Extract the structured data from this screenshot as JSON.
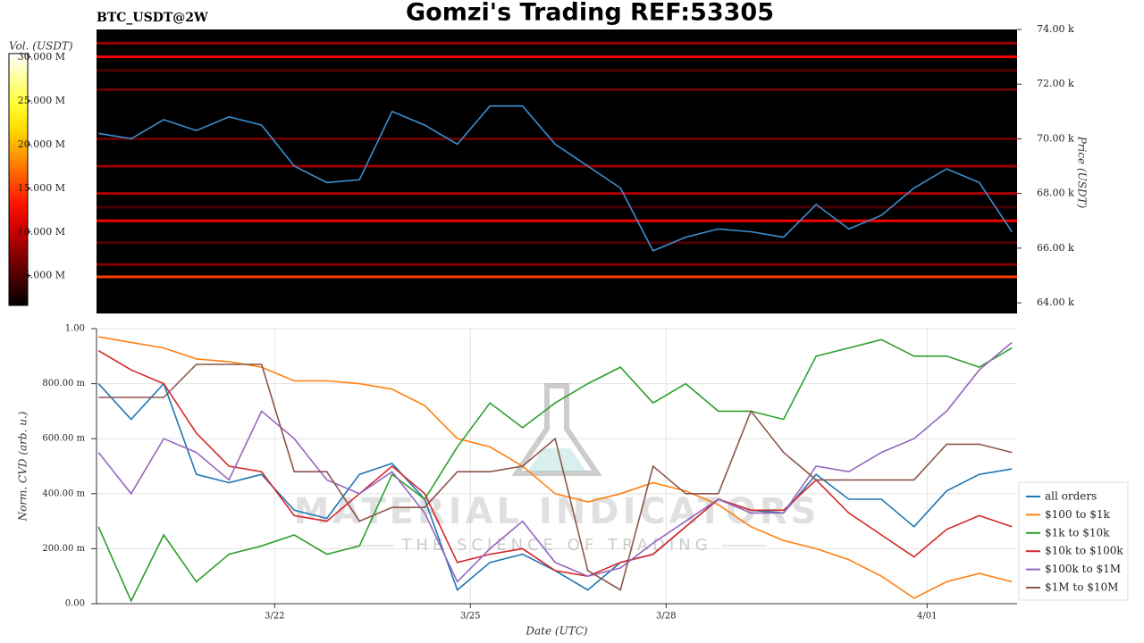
{
  "chart_data": [
    {
      "type": "heatmap",
      "title": "Gomzi's Trading REF:53305",
      "subtitle": "BTC_USDT@2W",
      "y_label": "Price (USDT)",
      "colorbar_label": "Vol. (USDT)",
      "colormap": "hot",
      "x": [
        19.3,
        19.8,
        20.3,
        20.8,
        21.3,
        21.8,
        22.3,
        22.8,
        23.3,
        23.8,
        24.3,
        24.8,
        25.3,
        25.8,
        26.3,
        26.8,
        27.3,
        27.8,
        28.3,
        28.8,
        29.3,
        29.8,
        30.3,
        30.8,
        31.3,
        31.8,
        32.3,
        32.8,
        33.3
      ],
      "xlim": [
        19.27,
        33.38
      ],
      "series": [
        {
          "color": "#3a8fd0",
          "values": [
            70200,
            70000,
            70700,
            70300,
            70800,
            70500,
            69000,
            68400,
            68500,
            71000,
            70500,
            69800,
            71200,
            71200,
            69800,
            69000,
            68200,
            65900,
            66400,
            66700,
            66600,
            66400,
            67600,
            66700,
            67200,
            68200,
            68900,
            68400,
            66600
          ]
        }
      ],
      "ylim": [
        63610,
        74000
      ],
      "yticks": [
        {
          "value": 64000,
          "label": "64.00 k"
        },
        {
          "value": 66000,
          "label": "66.00 k"
        },
        {
          "value": 68000,
          "label": "68.00 k"
        },
        {
          "value": 70000,
          "label": "70.00 k"
        },
        {
          "value": 72000,
          "label": "72.00 k"
        },
        {
          "value": 74000,
          "label": "74.00 k"
        }
      ],
      "clim": [
        1600000,
        30400000
      ],
      "cticks": [
        {
          "value": 5000000,
          "label": "5.000 M"
        },
        {
          "value": 10000000,
          "label": "10.000 M"
        },
        {
          "value": 15000000,
          "label": "15.000 M"
        },
        {
          "value": 20000000,
          "label": "20.000 M"
        },
        {
          "value": 25000000,
          "label": "25.000 M"
        },
        {
          "value": 30000000,
          "label": "30.000 M"
        }
      ],
      "levels": {
        "price": [
          64950,
          73000,
          67000,
          68000,
          73500,
          69000,
          65400,
          71800,
          70000,
          66200,
          72500,
          67500
        ],
        "volume": [
          15000000,
          12000000,
          12000000,
          9000000,
          8000000,
          8000000,
          7000000,
          6000000,
          6000000,
          5000000,
          5000000,
          4500000
        ]
      }
    },
    {
      "type": "line",
      "y_label": "Norm. CVD (arb. u.)",
      "x_label": "Date (UTC)",
      "grid": true,
      "legend": "lower right",
      "watermark": {
        "title": "MATERIAL INDICATORS",
        "subtitle": "THE SCIENCE OF TRADING"
      },
      "x": [
        19.3,
        19.8,
        20.3,
        20.8,
        21.3,
        21.8,
        22.3,
        22.8,
        23.3,
        23.8,
        24.3,
        24.8,
        25.3,
        25.8,
        26.3,
        26.8,
        27.3,
        27.8,
        28.3,
        28.8,
        29.3,
        29.8,
        30.3,
        30.8,
        31.3,
        31.8,
        32.3,
        32.8,
        33.3
      ],
      "xlim": [
        19.27,
        33.38
      ],
      "xticks": [
        {
          "value": 22,
          "label": "3/22"
        },
        {
          "value": 25,
          "label": "3/25"
        },
        {
          "value": 28,
          "label": "3/28"
        },
        {
          "value": 32,
          "label": "4/01"
        }
      ],
      "ylim": [
        0,
        1
      ],
      "yticks": [
        {
          "value": 0,
          "label": "0.00"
        },
        {
          "value": 0.2,
          "label": "200.00 m"
        },
        {
          "value": 0.4,
          "label": "400.00 m"
        },
        {
          "value": 0.6,
          "label": "600.00 m"
        },
        {
          "value": 0.8,
          "label": "800.00 m"
        },
        {
          "value": 1,
          "label": "1.00"
        }
      ],
      "series": [
        {
          "name": "all orders",
          "color": "#1f77b4",
          "values": [
            0.8,
            0.67,
            0.8,
            0.47,
            0.44,
            0.47,
            0.34,
            0.31,
            0.47,
            0.51,
            0.38,
            0.05,
            0.15,
            0.18,
            0.12,
            0.05,
            0.15,
            0.18,
            0.28,
            0.38,
            0.34,
            0.33,
            0.47,
            0.38,
            0.38,
            0.28,
            0.41,
            0.47,
            0.49
          ]
        },
        {
          "name": "$100 to $1k",
          "color": "#ff7f0e",
          "values": [
            0.97,
            0.95,
            0.93,
            0.89,
            0.88,
            0.86,
            0.81,
            0.81,
            0.8,
            0.78,
            0.72,
            0.6,
            0.57,
            0.5,
            0.4,
            0.37,
            0.4,
            0.44,
            0.41,
            0.36,
            0.28,
            0.23,
            0.2,
            0.16,
            0.1,
            0.02,
            0.08,
            0.11,
            0.08
          ]
        },
        {
          "name": "$1k to $10k",
          "color": "#2ca02c",
          "values": [
            0.28,
            0.01,
            0.25,
            0.08,
            0.18,
            0.21,
            0.25,
            0.18,
            0.21,
            0.47,
            0.38,
            0.57,
            0.73,
            0.64,
            0.73,
            0.8,
            0.86,
            0.73,
            0.8,
            0.7,
            0.7,
            0.67,
            0.9,
            0.93,
            0.96,
            0.9,
            0.9,
            0.86,
            0.93
          ]
        },
        {
          "name": "$10k to $100k",
          "color": "#d62728",
          "values": [
            0.92,
            0.85,
            0.8,
            0.62,
            0.5,
            0.48,
            0.32,
            0.3,
            0.4,
            0.5,
            0.4,
            0.15,
            0.18,
            0.2,
            0.12,
            0.1,
            0.15,
            0.18,
            0.28,
            0.38,
            0.34,
            0.34,
            0.45,
            0.33,
            0.25,
            0.17,
            0.27,
            0.32,
            0.28
          ]
        },
        {
          "name": "$100k to $1M",
          "color": "#9467bd",
          "values": [
            0.55,
            0.4,
            0.6,
            0.55,
            0.45,
            0.7,
            0.6,
            0.45,
            0.4,
            0.48,
            0.33,
            0.08,
            0.2,
            0.3,
            0.15,
            0.1,
            0.13,
            0.22,
            0.3,
            0.38,
            0.33,
            0.33,
            0.5,
            0.48,
            0.55,
            0.6,
            0.7,
            0.85,
            0.95
          ]
        },
        {
          "name": "$1M to $10M",
          "color": "#8c564b",
          "values": [
            0.75,
            0.75,
            0.75,
            0.87,
            0.87,
            0.87,
            0.48,
            0.48,
            0.3,
            0.35,
            0.35,
            0.48,
            0.48,
            0.5,
            0.6,
            0.12,
            0.05,
            0.5,
            0.4,
            0.4,
            0.7,
            0.55,
            0.45,
            0.45,
            0.45,
            0.45,
            0.58,
            0.58,
            0.55
          ]
        }
      ]
    }
  ]
}
